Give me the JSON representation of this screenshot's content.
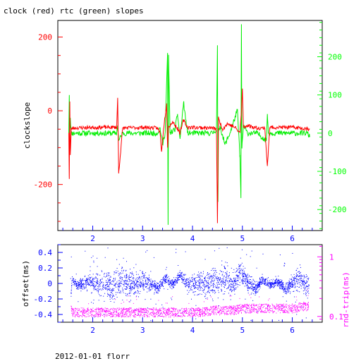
{
  "title": "clock (red) rtc (green) slopes",
  "footer": "2012-01-01 florr",
  "colors": {
    "clock": "#ff0000",
    "rtc": "#00ee00",
    "offset": "#0000ff",
    "roundtrip": "#ff00ff",
    "axis_left_top": "#ff0000",
    "axis_right_top": "#00ff00",
    "axis_x": "#0000ff",
    "axis_left_bottom": "#0000ff",
    "axis_right_bottom": "#ff00ff"
  },
  "chart_data": [
    {
      "type": "line",
      "title": "clock (red) rtc (green) slopes",
      "ylabel": "clockslope",
      "xlim": [
        1.3,
        6.6
      ],
      "ylim": [
        -325,
        245
      ],
      "y2lim": [
        -255,
        295
      ],
      "grid": false,
      "x_ticks": [
        "2",
        "3",
        "4",
        "5",
        "6"
      ],
      "y_ticks": [
        "200",
        "0",
        "-200"
      ],
      "y2_ticks": [
        "200",
        "100",
        "0",
        "-100",
        "-200"
      ],
      "series": [
        {
          "name": "clock",
          "axis": "left",
          "baseline": -47,
          "x": [
            1.52,
            1.53,
            1.54,
            1.55,
            1.57,
            1.6,
            2.0,
            2.48,
            2.5,
            2.52,
            2.6,
            3.0,
            3.3,
            3.35,
            3.38,
            3.42,
            3.48,
            3.5,
            3.52,
            3.6,
            3.7,
            3.75,
            3.78,
            3.82,
            3.9,
            4.0,
            4.4,
            4.48,
            4.5,
            4.52,
            4.6,
            4.7,
            4.85,
            4.95,
            4.98,
            5.0,
            5.02,
            5.1,
            5.3,
            5.45,
            5.5,
            5.55,
            5.7,
            6.0,
            6.3,
            6.35
          ],
          "y": [
            -60,
            -185,
            25,
            -120,
            -50,
            -47,
            -45,
            -45,
            35,
            -170,
            -47,
            -45,
            -47,
            -60,
            -110,
            -48,
            20,
            -100,
            -45,
            -30,
            -48,
            -60,
            -45,
            -25,
            -45,
            -45,
            -47,
            -50,
            -305,
            -20,
            -50,
            -35,
            -45,
            -60,
            0,
            60,
            -45,
            -40,
            -47,
            -47,
            -150,
            -45,
            -45,
            -45,
            -48,
            -50
          ]
        },
        {
          "name": "rtc",
          "axis": "right",
          "baseline": 0,
          "x": [
            1.52,
            1.53,
            1.54,
            1.55,
            1.57,
            1.6,
            2.0,
            2.48,
            2.5,
            2.52,
            2.6,
            3.0,
            3.3,
            3.35,
            3.4,
            3.45,
            3.5,
            3.51,
            3.52,
            3.55,
            3.65,
            3.7,
            3.75,
            3.82,
            3.9,
            4.0,
            4.4,
            4.48,
            4.5,
            4.51,
            4.52,
            4.55,
            4.65,
            4.75,
            4.9,
            4.95,
            4.97,
            4.98,
            4.99,
            5.02,
            5.1,
            5.3,
            5.48,
            5.5,
            5.52,
            5.6,
            6.0,
            6.3,
            6.35
          ],
          "y": [
            0,
            100,
            -10,
            40,
            0,
            0,
            0,
            0,
            20,
            -20,
            0,
            0,
            0,
            15,
            -30,
            0,
            210,
            -240,
            205,
            0,
            10,
            50,
            -15,
            80,
            0,
            0,
            0,
            10,
            230,
            -180,
            0,
            20,
            -30,
            0,
            60,
            -60,
            -170,
            285,
            -40,
            20,
            0,
            0,
            -20,
            50,
            0,
            0,
            0,
            0,
            -10
          ]
        }
      ]
    },
    {
      "type": "scatter",
      "ylabel": "offset(ms)",
      "y2label": "rnd-trip(ms)",
      "xlim": [
        1.3,
        6.6
      ],
      "ylim": [
        -0.5,
        0.5
      ],
      "y2_log": true,
      "y2lim": [
        0.08,
        1.6
      ],
      "grid": false,
      "x_ticks": [
        "2",
        "3",
        "4",
        "5",
        "6"
      ],
      "y_ticks": [
        "0.4",
        "0.2",
        "0",
        "-0.2",
        "-0.4"
      ],
      "y2_ticks": [
        "1",
        "0.1"
      ],
      "series": [
        {
          "name": "offset(ms)",
          "axis": "left",
          "x": [
            1.55,
            1.56,
            1.58,
            1.62,
            1.7,
            1.8,
            1.95,
            2.1,
            2.25,
            2.4,
            2.55,
            2.7,
            2.85,
            3.0,
            3.15,
            3.3,
            3.45,
            3.6,
            3.75,
            3.85,
            3.95,
            4.1,
            4.3,
            4.5,
            4.65,
            4.8,
            4.95,
            5.1,
            5.25,
            5.4,
            5.55,
            5.7,
            5.85,
            6.0,
            6.15,
            6.3,
            6.33
          ],
          "y": [
            0.43,
            -0.42,
            0.22,
            0.06,
            -0.06,
            0.02,
            0.09,
            -0.05,
            0.02,
            -0.12,
            0.12,
            0.01,
            -0.08,
            0.07,
            0.0,
            -0.15,
            0.2,
            -0.04,
            0.32,
            0.05,
            -0.02,
            0.0,
            -0.01,
            0.0,
            0.18,
            -0.07,
            0.4,
            0.06,
            -0.18,
            0.14,
            -0.05,
            0.08,
            -0.2,
            0.05,
            0.21,
            -0.09,
            0.02
          ]
        },
        {
          "name": "rnd-trip(ms)",
          "axis": "right",
          "x": [
            1.55,
            1.6,
            1.8,
            2.0,
            2.2,
            2.4,
            2.6,
            2.8,
            3.0,
            3.2,
            3.4,
            3.6,
            3.8,
            4.0,
            4.2,
            4.4,
            4.6,
            4.8,
            5.0,
            5.2,
            5.4,
            5.6,
            5.8,
            6.0,
            6.2,
            6.33
          ],
          "y": [
            0.15,
            0.12,
            0.12,
            0.12,
            0.12,
            0.12,
            0.12,
            0.12,
            0.12,
            0.12,
            0.12,
            0.12,
            0.12,
            0.12,
            0.12,
            0.13,
            0.13,
            0.13,
            0.14,
            0.14,
            0.14,
            0.14,
            0.14,
            0.14,
            0.15,
            0.15
          ]
        }
      ]
    }
  ]
}
